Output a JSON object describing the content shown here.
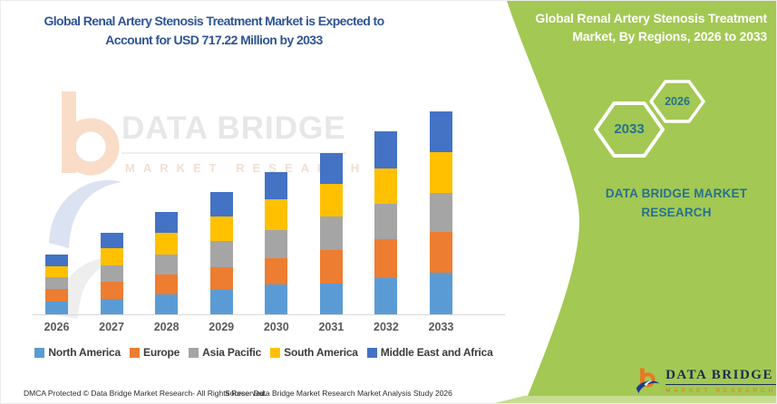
{
  "header": {
    "title": "Global Renal Artery Stenosis Treatment Market is Expected to Account for USD 717.22 Million by 2033"
  },
  "side_panel": {
    "title": "Global Renal Artery Stenosis Treatment Market, By Regions, 2026 to 2033",
    "hexagons": [
      {
        "label": "2033"
      },
      {
        "label": "2026"
      }
    ],
    "brand_heading": "DATA BRIDGE MARKET RESEARCH"
  },
  "watermark": {
    "brand": "DATA BRIDGE",
    "tagline": "MARKET RESEARCH"
  },
  "logo": {
    "brand": "DATA BRIDGE",
    "tagline": "MARKET RESEARCH"
  },
  "footer": {
    "left": "DMCA Protected © Data Bridge Market Research-  All Rights Reserved.",
    "right": "Source: Data Bridge Market Research  Market Analysis Study 2026"
  },
  "colors": {
    "panel_green": "#a3c853",
    "panel_green_light": "#c6dc90",
    "title_navy": "#2f5496",
    "teal_text": "#26718e",
    "logo_orange": "#e87722",
    "logo_navy": "#1c2d52"
  },
  "chart_data": {
    "type": "bar",
    "stacked": true,
    "title": "Global Renal Artery Stenosis Treatment Market is Expected to Account for USD 717.22 Million by 2033",
    "units": "USD Million",
    "xlabel": "",
    "ylabel": "",
    "ylim": [
      0,
      750
    ],
    "grid": false,
    "legend_position": "bottom",
    "categories": [
      "2026",
      "2027",
      "2028",
      "2029",
      "2030",
      "2031",
      "2032",
      "2033"
    ],
    "series": [
      {
        "name": "North America",
        "color": "#5B9BD5",
        "values": [
          46,
          56,
          70,
          86,
          107,
          109,
          128,
          146.5
        ]
      },
      {
        "name": "Europe",
        "color": "#ED7D31",
        "values": [
          43,
          59,
          71,
          82,
          91,
          118,
          137,
          145.2
        ]
      },
      {
        "name": "Asia Pacific",
        "color": "#A5A5A5",
        "values": [
          43,
          59,
          71,
          91,
          99,
          119,
          125,
          136.0
        ]
      },
      {
        "name": "South America",
        "color": "#FFC000",
        "values": [
          39,
          59,
          77,
          87,
          109,
          116,
          125,
          144.3
        ]
      },
      {
        "name": "Middle East and Africa",
        "color": "#4472C4",
        "values": [
          41,
          56,
          72,
          86,
          96,
          108,
          131,
          145.2
        ]
      }
    ],
    "totals": [
      212,
      289,
      361,
      432,
      502,
      570,
      646,
      717.22
    ]
  }
}
